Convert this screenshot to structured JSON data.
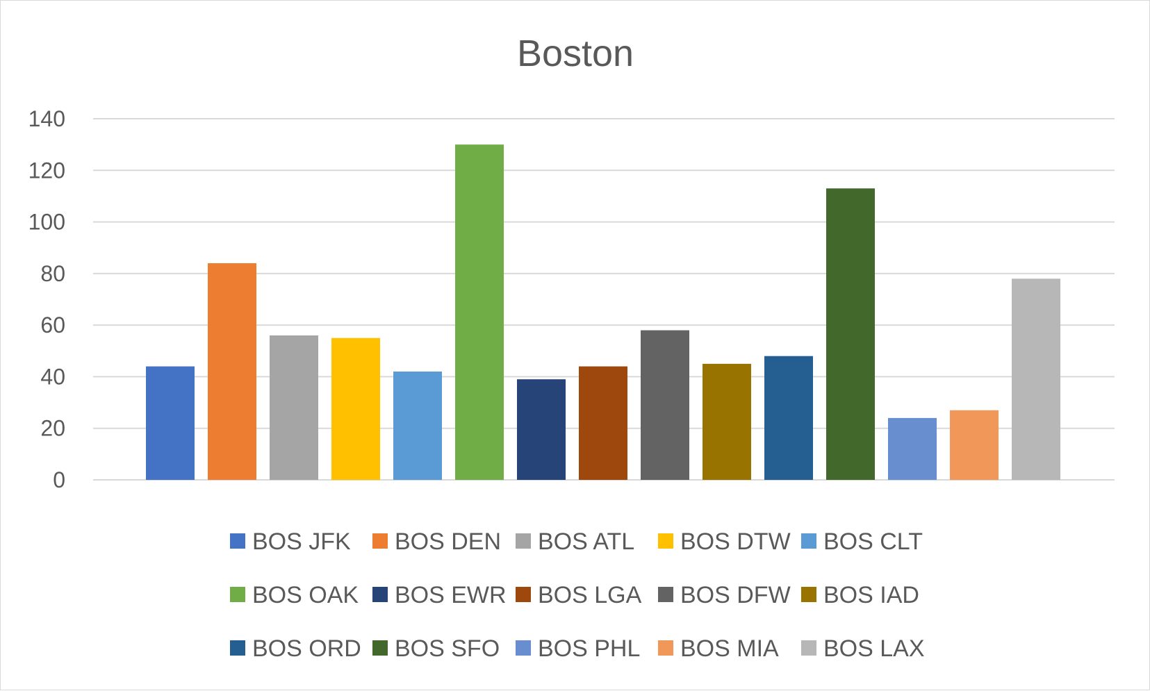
{
  "chart_data": {
    "type": "bar",
    "title": "Boston",
    "xlabel": "",
    "ylabel": "",
    "ylim": [
      0,
      140
    ],
    "yticks": [
      0,
      20,
      40,
      60,
      80,
      100,
      120,
      140
    ],
    "grid": true,
    "legend_position": "bottom",
    "series": [
      {
        "name": "BOS JFK",
        "value": 44,
        "color": "#4472C4"
      },
      {
        "name": "BOS DEN",
        "value": 84,
        "color": "#ED7D31"
      },
      {
        "name": "BOS ATL",
        "value": 56,
        "color": "#A5A5A5"
      },
      {
        "name": "BOS DTW",
        "value": 55,
        "color": "#FFC000"
      },
      {
        "name": "BOS CLT",
        "value": 42,
        "color": "#5B9BD5"
      },
      {
        "name": "BOS OAK",
        "value": 130,
        "color": "#70AD47"
      },
      {
        "name": "BOS EWR",
        "value": 39,
        "color": "#264478"
      },
      {
        "name": "BOS LGA",
        "value": 44,
        "color": "#9E480E"
      },
      {
        "name": "BOS DFW",
        "value": 58,
        "color": "#636363"
      },
      {
        "name": "BOS IAD",
        "value": 45,
        "color": "#997300"
      },
      {
        "name": "BOS ORD",
        "value": 48,
        "color": "#255E91"
      },
      {
        "name": "BOS SFO",
        "value": 113,
        "color": "#43682B"
      },
      {
        "name": "BOS PHL",
        "value": 24,
        "color": "#698ED0"
      },
      {
        "name": "BOS MIA",
        "value": 27,
        "color": "#F1975A"
      },
      {
        "name": "BOS LAX",
        "value": 78,
        "color": "#B7B7B7"
      }
    ]
  }
}
